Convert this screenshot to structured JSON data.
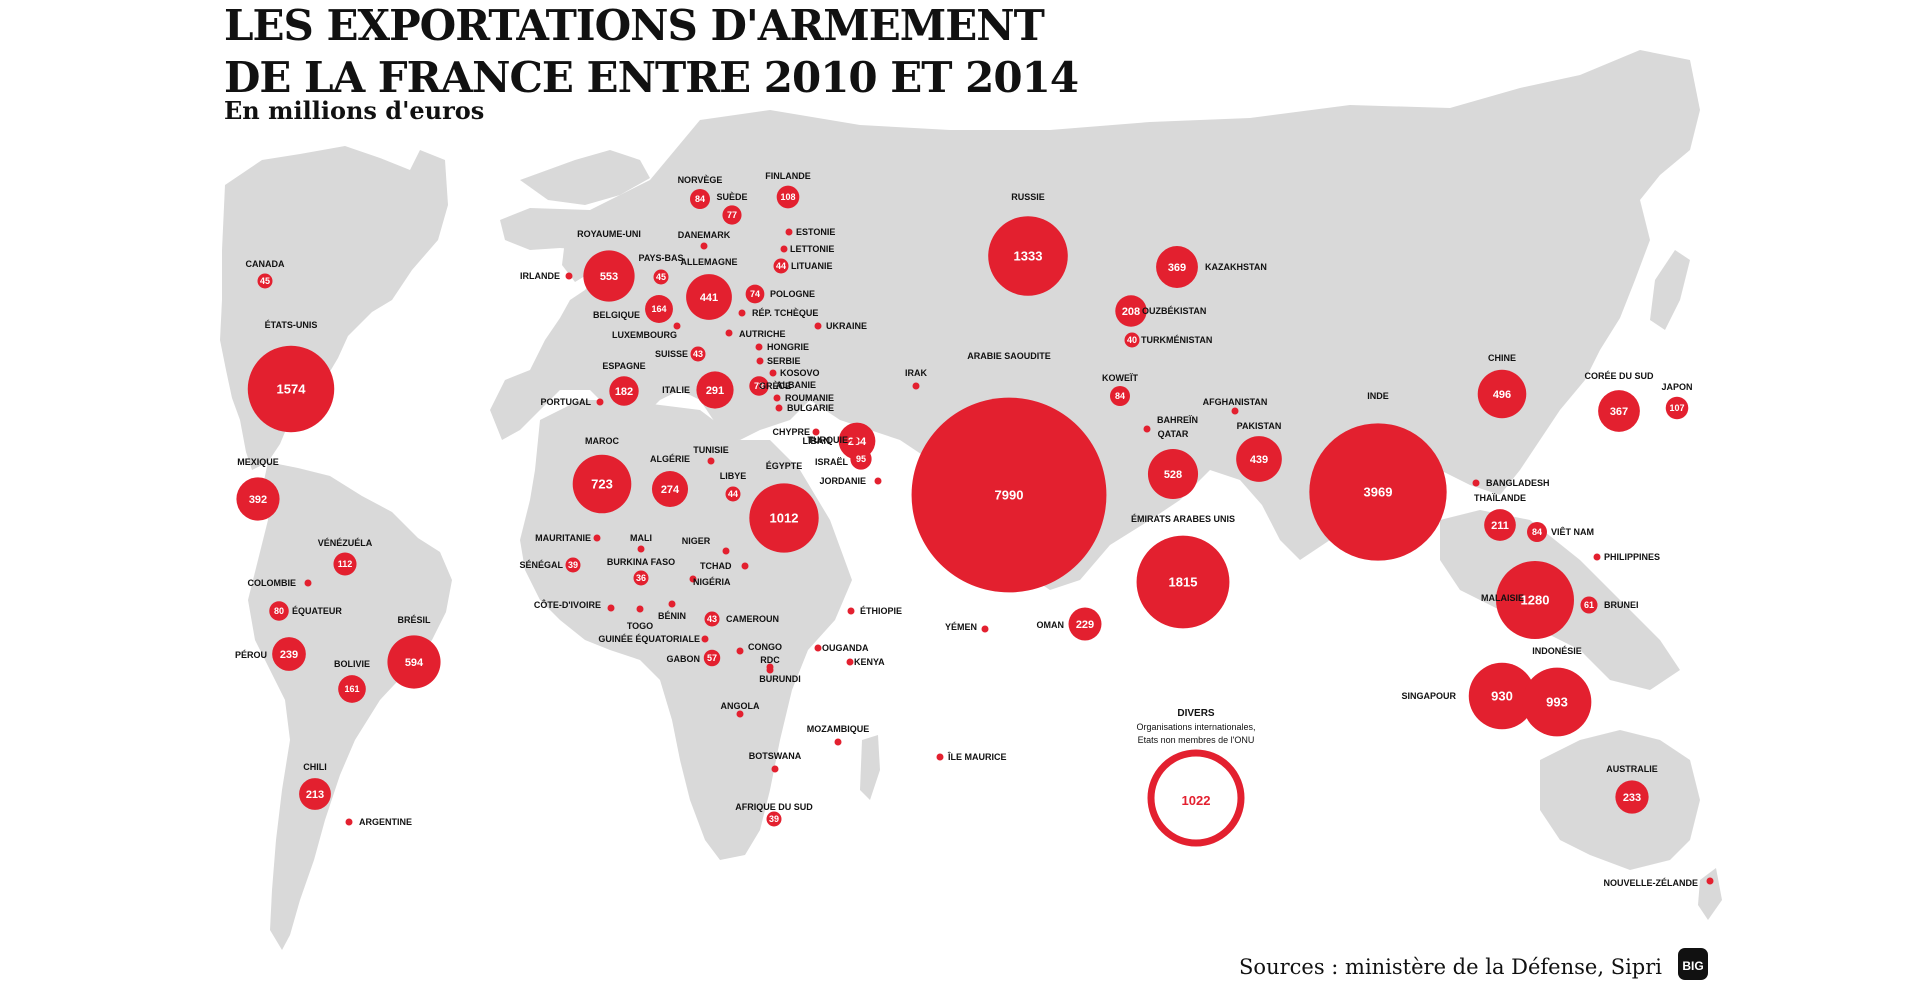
{
  "title_line1": "LES EXPORTATIONS D'ARMEMENT",
  "title_line2": "DE LA FRANCE ENTRE 2010 ET 2014",
  "subtitle": "En millions d'euros",
  "source": "Sources : ministère de la Défense, Sipri",
  "logo_text": "BIG",
  "colors": {
    "bubble": "#e3202f",
    "land": "#d9d9d9",
    "text": "#111111"
  },
  "divers": {
    "title": "DIVERS",
    "desc_line1": "Organisations internationales,",
    "desc_line2": "Etats non membres de l'ONU",
    "value": "1022"
  },
  "countries": [
    {
      "name": "CANADA",
      "value": "45"
    },
    {
      "name": "ÉTATS-UNIS",
      "value": "1574"
    },
    {
      "name": "MEXIQUE",
      "value": "392"
    },
    {
      "name": "VÉNÉZUÉLA",
      "value": "112"
    },
    {
      "name": "COLOMBIE",
      "value": ""
    },
    {
      "name": "ÉQUATEUR",
      "value": "80"
    },
    {
      "name": "PÉROU",
      "value": "239"
    },
    {
      "name": "BRÉSIL",
      "value": "594"
    },
    {
      "name": "BOLIVIE",
      "value": "161"
    },
    {
      "name": "CHILI",
      "value": "213"
    },
    {
      "name": "ARGENTINE",
      "value": ""
    },
    {
      "name": "NORVÈGE",
      "value": "84"
    },
    {
      "name": "SUÈDE",
      "value": "77"
    },
    {
      "name": "FINLANDE",
      "value": "108"
    },
    {
      "name": "ROYAUME-UNI",
      "value": "553"
    },
    {
      "name": "IRLANDE",
      "value": ""
    },
    {
      "name": "DANEMARK",
      "value": ""
    },
    {
      "name": "ESTONIE",
      "value": ""
    },
    {
      "name": "LETTONIE",
      "value": ""
    },
    {
      "name": "LITUANIE",
      "value": "44"
    },
    {
      "name": "PAYS-BAS",
      "value": "45"
    },
    {
      "name": "ALLEMAGNE",
      "value": "441"
    },
    {
      "name": "POLOGNE",
      "value": "74"
    },
    {
      "name": "BELGIQUE",
      "value": "164"
    },
    {
      "name": "RÉP. TCHÈQUE",
      "value": ""
    },
    {
      "name": "UKRAINE",
      "value": ""
    },
    {
      "name": "LUXEMBOURG",
      "value": ""
    },
    {
      "name": "AUTRICHE",
      "value": ""
    },
    {
      "name": "SUISSE",
      "value": "43"
    },
    {
      "name": "HONGRIE",
      "value": ""
    },
    {
      "name": "SERBIE",
      "value": ""
    },
    {
      "name": "ESPAGNE",
      "value": "182"
    },
    {
      "name": "ITALIE",
      "value": "291"
    },
    {
      "name": "KOSOVO",
      "value": ""
    },
    {
      "name": "ALBANIE",
      "value": ""
    },
    {
      "name": "GRÈCE",
      "value": "79"
    },
    {
      "name": "ROUMANIE",
      "value": ""
    },
    {
      "name": "BULGARIE",
      "value": ""
    },
    {
      "name": "PORTUGAL",
      "value": ""
    },
    {
      "name": "CHYPRE",
      "value": ""
    },
    {
      "name": "TURQUIE",
      "value": "284"
    },
    {
      "name": "IRAK",
      "value": ""
    },
    {
      "name": "LIBAN",
      "value": ""
    },
    {
      "name": "ISRAËL",
      "value": "95"
    },
    {
      "name": "JORDANIE",
      "value": ""
    },
    {
      "name": "MAROC",
      "value": "723"
    },
    {
      "name": "TUNISIE",
      "value": ""
    },
    {
      "name": "ALGÉRIE",
      "value": "274"
    },
    {
      "name": "LIBYE",
      "value": "44"
    },
    {
      "name": "ÉGYPTE",
      "value": "1012"
    },
    {
      "name": "MAURITANIE",
      "value": ""
    },
    {
      "name": "MALI",
      "value": ""
    },
    {
      "name": "NIGER",
      "value": ""
    },
    {
      "name": "SÉNÉGAL",
      "value": "39"
    },
    {
      "name": "BURKINA FASO",
      "value": "36"
    },
    {
      "name": "TCHAD",
      "value": ""
    },
    {
      "name": "NIGÉRIA",
      "value": ""
    },
    {
      "name": "CÔTE-D'IVOIRE",
      "value": ""
    },
    {
      "name": "TOGO",
      "value": ""
    },
    {
      "name": "BÉNIN",
      "value": ""
    },
    {
      "name": "CAMEROUN",
      "value": "43"
    },
    {
      "name": "ÉTHIOPIE",
      "value": ""
    },
    {
      "name": "GUINÉE ÉQUATORIALE",
      "value": ""
    },
    {
      "name": "CONGO",
      "value": ""
    },
    {
      "name": "GABON",
      "value": "57"
    },
    {
      "name": "RDC",
      "value": ""
    },
    {
      "name": "OUGANDA",
      "value": ""
    },
    {
      "name": "KENYA",
      "value": ""
    },
    {
      "name": "BURUNDI",
      "value": ""
    },
    {
      "name": "ANGOLA",
      "value": ""
    },
    {
      "name": "MOZAMBIQUE",
      "value": ""
    },
    {
      "name": "BOTSWANA",
      "value": ""
    },
    {
      "name": "ÎLE MAURICE",
      "value": ""
    },
    {
      "name": "AFRIQUE DU SUD",
      "value": "39"
    },
    {
      "name": "RUSSIE",
      "value": "1333"
    },
    {
      "name": "KAZAKHSTAN",
      "value": "369"
    },
    {
      "name": "OUZBÉKISTAN",
      "value": "208"
    },
    {
      "name": "TURKMÉNISTAN",
      "value": "40"
    },
    {
      "name": "ARABIE SAOUDITE",
      "value": "7990"
    },
    {
      "name": "KOWEÏT",
      "value": "84"
    },
    {
      "name": "BAHREÏN",
      "value": ""
    },
    {
      "name": "QATAR",
      "value": "528"
    },
    {
      "name": "ÉMIRATS ARABES UNIS",
      "value": "1815"
    },
    {
      "name": "YÉMEN",
      "value": ""
    },
    {
      "name": "OMAN",
      "value": "229"
    },
    {
      "name": "AFGHANISTAN",
      "value": ""
    },
    {
      "name": "PAKISTAN",
      "value": "439"
    },
    {
      "name": "INDE",
      "value": "3969"
    },
    {
      "name": "BANGLADESH",
      "value": ""
    },
    {
      "name": "CHINE",
      "value": "496"
    },
    {
      "name": "CORÉE DU SUD",
      "value": "367"
    },
    {
      "name": "JAPON",
      "value": "107"
    },
    {
      "name": "THAÏLANDE",
      "value": "211"
    },
    {
      "name": "VIÊT NAM",
      "value": "84"
    },
    {
      "name": "PHILIPPINES",
      "value": ""
    },
    {
      "name": "MALAISIE",
      "value": "1280"
    },
    {
      "name": "BRUNEI",
      "value": "61"
    },
    {
      "name": "SINGAPOUR",
      "value": "930"
    },
    {
      "name": "INDONÉSIE",
      "value": "993"
    },
    {
      "name": "AUSTRALIE",
      "value": "233"
    },
    {
      "name": "NOUVELLE-ZÉLANDE",
      "value": ""
    }
  ]
}
